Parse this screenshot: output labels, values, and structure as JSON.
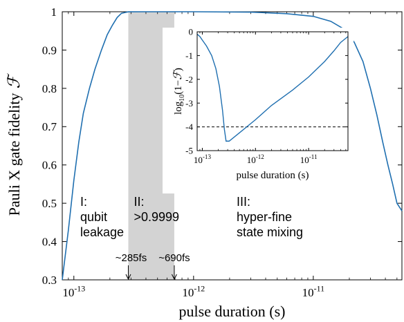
{
  "chart_data": [
    {
      "type": "line",
      "xlabel": "pulse duration (s)",
      "ylabel_text": "Pauli X gate fidelity",
      "ylabel_symbol": "ℱ",
      "x_scale": "log",
      "xlim": [
        8e-14,
        5.5e-11
      ],
      "ylim": [
        0.3,
        1.0
      ],
      "yticks": [
        0.3,
        0.4,
        0.5,
        0.6,
        0.7,
        0.8,
        0.9,
        1.0
      ],
      "ytick_labels": [
        "0.3",
        "0.4",
        "0.5",
        "0.6",
        "0.7",
        "0.8",
        "0.9",
        "1"
      ],
      "xticks": [
        {
          "value": 1e-13,
          "base": "10",
          "exp": "-13"
        },
        {
          "value": 1e-12,
          "base": "10",
          "exp": "-12"
        },
        {
          "value": 1e-11,
          "base": "10",
          "exp": "-11"
        }
      ],
      "line_color": "#1f6fb0",
      "shaded_region": {
        "x_start": 2.85e-13,
        "x_end": 6.9e-13,
        "color": "#d3d3d3"
      },
      "series": [
        {
          "x": [
            8e-14,
            9e-14,
            1e-13,
            1.1e-13,
            1.2e-13,
            1.35e-13,
            1.5e-13,
            1.7e-13,
            1.9e-13,
            2.1e-13,
            2.3e-13,
            2.5e-13,
            2.85e-13,
            4e-13,
            1e-12,
            3e-12,
            6e-12,
            1e-11,
            1.4e-11,
            1.8e-11,
            2.2e-11,
            2.6e-11,
            3e-11,
            3.4e-11,
            3.8e-11,
            4.2e-11,
            4.6e-11,
            5e-11,
            5.5e-11
          ],
          "y": [
            0.3,
            0.43,
            0.56,
            0.66,
            0.735,
            0.8,
            0.85,
            0.9,
            0.94,
            0.965,
            0.985,
            0.996,
            0.9999,
            1.0,
            1.0,
            0.999,
            0.995,
            0.988,
            0.975,
            0.955,
            0.92,
            0.87,
            0.8,
            0.73,
            0.66,
            0.6,
            0.55,
            0.5,
            0.48
          ]
        }
      ],
      "annotations": [
        {
          "lines": [
            "I:",
            "qubit",
            "leakage"
          ]
        },
        {
          "lines": [
            "II:",
            ">0.9999"
          ]
        },
        {
          "lines": [
            "III:",
            "hyper-fine",
            "state mixing"
          ]
        }
      ],
      "arrows": [
        {
          "label": "~285fs",
          "x": 2.85e-13
        },
        {
          "label": "~690fs",
          "x": 6.9e-13
        }
      ]
    },
    {
      "type": "line",
      "xlabel": "pulse duration (s)",
      "ylabel_prefix": "log",
      "ylabel_sub": "10",
      "ylabel_suffix": "(1−",
      "ylabel_symbol": "ℱ",
      "ylabel_close": ")",
      "x_scale": "log",
      "xlim": [
        8e-14,
        5.5e-11
      ],
      "ylim": [
        -5,
        0
      ],
      "yticks": [
        0,
        -1,
        -2,
        -3,
        -4,
        -5
      ],
      "ytick_labels": [
        "0",
        "-1",
        "-2",
        "-3",
        "-4",
        "-5"
      ],
      "xticks": [
        {
          "value": 1e-13,
          "base": "10",
          "exp": "-13"
        },
        {
          "value": 1e-12,
          "base": "10",
          "exp": "-12"
        },
        {
          "value": 1e-11,
          "base": "10",
          "exp": "-11"
        }
      ],
      "threshold": {
        "y": -4,
        "style": "dashed"
      },
      "line_color": "#1f6fb0",
      "series": [
        {
          "x": [
            8e-14,
            9e-14,
            1e-13,
            1.2e-13,
            1.5e-13,
            1.8e-13,
            2.1e-13,
            2.4e-13,
            2.6e-13,
            2.8e-13,
            3.2e-13,
            5e-13,
            1e-12,
            2e-12,
            5e-12,
            1e-11,
            2e-11,
            3e-11,
            4e-11,
            5.5e-11
          ],
          "y": [
            -0.1,
            -0.2,
            -0.35,
            -0.6,
            -1.0,
            -1.55,
            -2.3,
            -3.3,
            -4.1,
            -4.6,
            -4.6,
            -4.25,
            -3.7,
            -3.1,
            -2.45,
            -1.9,
            -1.25,
            -0.8,
            -0.45,
            -0.2
          ]
        }
      ]
    }
  ]
}
